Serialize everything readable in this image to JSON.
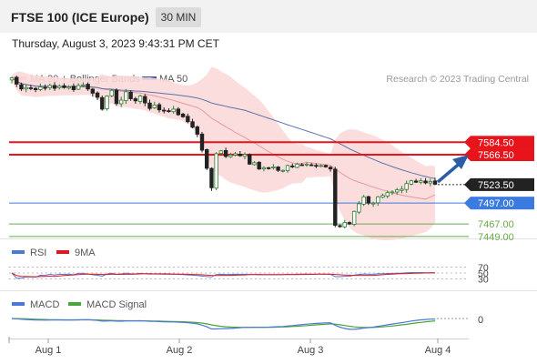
{
  "header": {
    "title": "FTSE 100 (ICE Europe)",
    "timeframe": "30 MIN"
  },
  "datetime": "Thursday, August 3, 2023 9:43:31 PM CET",
  "legend_main": {
    "ma20_label": "MA 20 + Bollinger Bands",
    "ma50_label": "MA 50",
    "credit": "Research © 2023 Trading Central"
  },
  "legend_rsi": {
    "rsi_label": "RSI",
    "ma9_label": "9MA"
  },
  "legend_macd": {
    "macd_label": "MACD",
    "signal_label": "MACD Signal"
  },
  "colors": {
    "candle_up": "#2e7d32",
    "candle_down": "#222222",
    "resistance": "#e8141b",
    "pivot": "#3b7be0",
    "support": "#6aaa4a",
    "last_price": "#222222",
    "bollinger": "#f7c6c6",
    "ma20": "#e89a9a",
    "ma50": "#3f5f9f",
    "rsi": "#4a78d6",
    "rsi_ma": "#e8141b",
    "macd": "#4a78d6",
    "macd_signal": "#4aa53a",
    "arrow": "#2a5ca8"
  },
  "chart_data": {
    "type": "candlestick",
    "x_ticks": [
      "Aug 1",
      "Aug 2",
      "Aug 3",
      "Aug 4"
    ],
    "levels": [
      {
        "label": "7584.50",
        "value": 7584.5,
        "kind": "resistance"
      },
      {
        "label": "7566.50",
        "value": 7566.5,
        "kind": "resistance"
      },
      {
        "label": "7523.50",
        "value": 7523.5,
        "kind": "last"
      },
      {
        "label": "7497.00",
        "value": 7497.0,
        "kind": "pivot"
      },
      {
        "label": "7467.00",
        "value": 7467.0,
        "kind": "support"
      },
      {
        "label": "7449.00",
        "value": 7449.0,
        "kind": "support"
      }
    ],
    "price_ylim": [
      7420,
      7700
    ],
    "close": [
      7677,
      7668,
      7661,
      7663,
      7662,
      7660,
      7664,
      7663,
      7666,
      7662,
      7665,
      7663,
      7664,
      7660,
      7666,
      7667,
      7661,
      7655,
      7649,
      7632,
      7651,
      7659,
      7640,
      7645,
      7657,
      7647,
      7644,
      7651,
      7641,
      7633,
      7638,
      7631,
      7630,
      7629,
      7632,
      7624,
      7621,
      7614,
      7606,
      7596,
      7573,
      7547,
      7519,
      7568,
      7572,
      7564,
      7566,
      7568,
      7565,
      7567,
      7553,
      7555,
      7546,
      7548,
      7547,
      7549,
      7544,
      7544,
      7551,
      7549,
      7553,
      7552,
      7553,
      7552,
      7551,
      7551,
      7549,
      7546,
      7465,
      7463,
      7469,
      7467,
      7485,
      7496,
      7506,
      7497,
      7497,
      7506,
      7508,
      7512,
      7513,
      7516,
      7517,
      7525,
      7529,
      7527,
      7529,
      7526,
      7528,
      7524
    ],
    "rsi": {
      "levels": [
        70,
        50,
        30
      ]
    },
    "macd": {
      "levels": [
        0
      ]
    }
  }
}
